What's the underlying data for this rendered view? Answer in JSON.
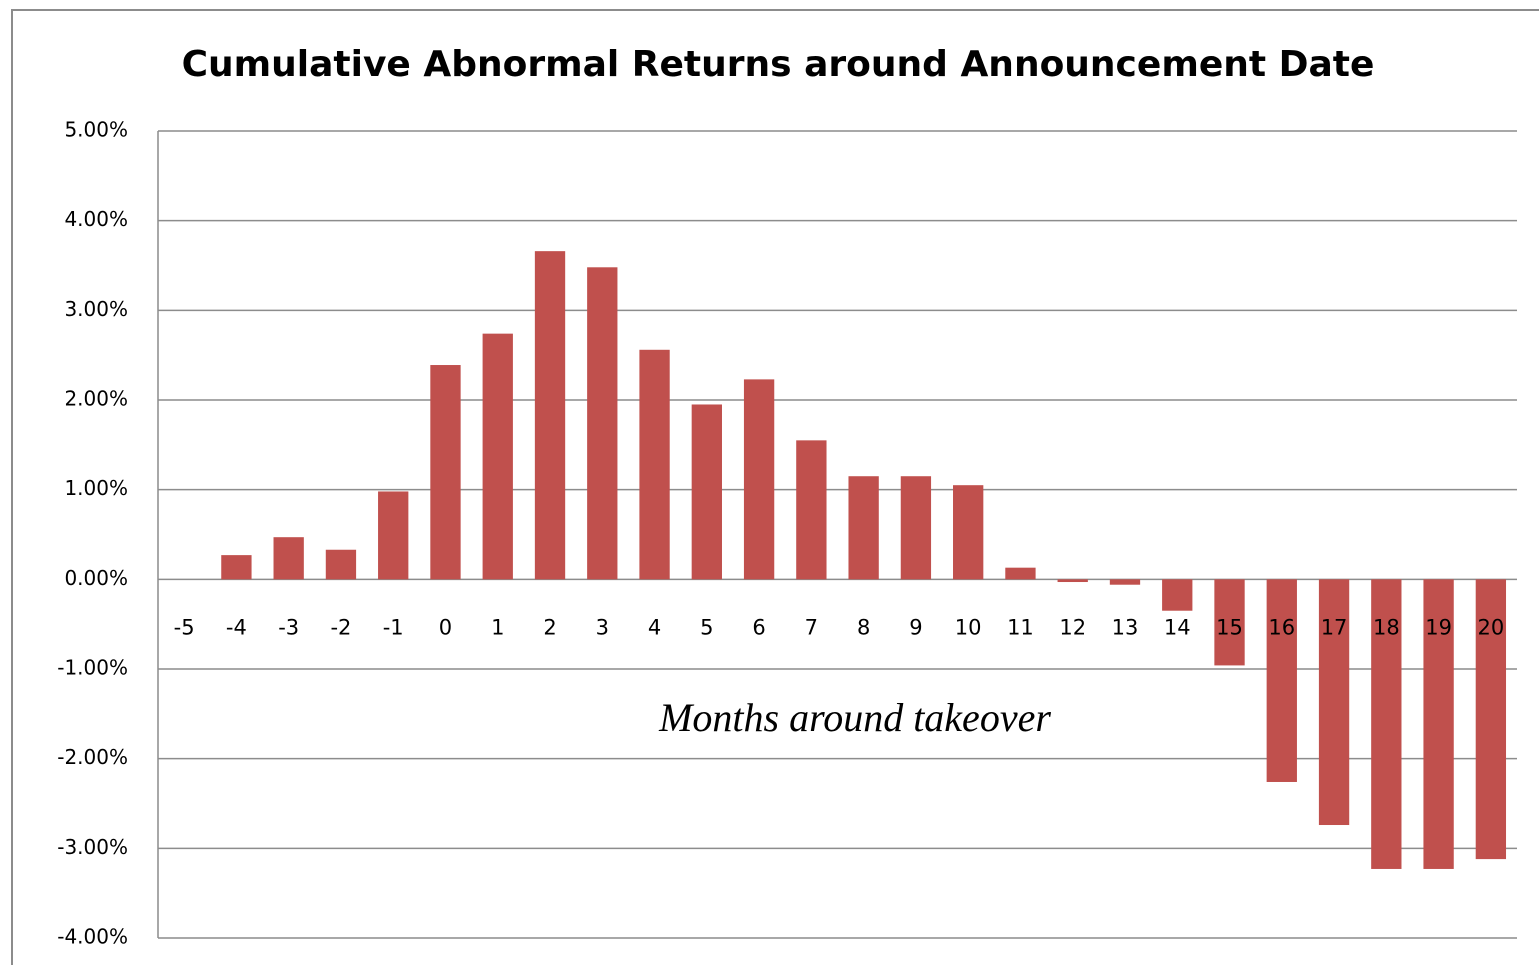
{
  "chart_data": {
    "type": "bar",
    "title": "Cumulative Abnormal Returns around Announcement Date",
    "x_label": "Months around takeover",
    "categories": [
      "-5",
      "-4",
      "-3",
      "-2",
      "-1",
      "0",
      "1",
      "2",
      "3",
      "4",
      "5",
      "6",
      "7",
      "8",
      "9",
      "10",
      "11",
      "12",
      "13",
      "14",
      "15",
      "16",
      "17",
      "18",
      "19",
      "20"
    ],
    "values": [
      0,
      0.27,
      0.47,
      0.33,
      0.98,
      2.39,
      2.74,
      3.66,
      3.48,
      2.56,
      1.95,
      2.23,
      1.55,
      1.15,
      1.15,
      1.05,
      0.13,
      -0.03,
      -0.06,
      -0.35,
      -0.96,
      -2.26,
      -2.74,
      -3.23,
      -3.23,
      -3.12
    ],
    "color": "#c0504d",
    "ylim": [
      -4,
      5
    ],
    "yticks": [
      {
        "value": -4,
        "label": "-4.00%"
      },
      {
        "value": -3,
        "label": "-3.00%"
      },
      {
        "value": -2,
        "label": "-2.00%"
      },
      {
        "value": -1,
        "label": "-1.00%"
      },
      {
        "value": 0,
        "label": "0.00%"
      },
      {
        "value": 1,
        "label": "1.00%"
      },
      {
        "value": 2,
        "label": "2.00%"
      },
      {
        "value": 3,
        "label": "3.00%"
      },
      {
        "value": 4,
        "label": "4.00%"
      },
      {
        "value": 5,
        "label": "5.00%"
      }
    ],
    "grid": true
  }
}
